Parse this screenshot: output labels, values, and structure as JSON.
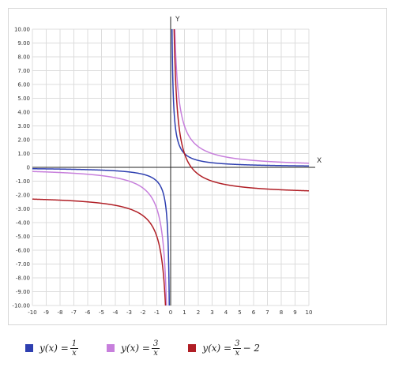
{
  "chart_data": {
    "type": "line",
    "xlabel": "X",
    "ylabel": "Y",
    "xlim": [
      -10,
      10
    ],
    "ylim": [
      -10,
      10
    ],
    "grid": true,
    "x_ticks": [
      "-10",
      "-9",
      "-8",
      "-7",
      "-6",
      "-5",
      "-4",
      "-3",
      "-2",
      "-1",
      "0",
      "1",
      "2",
      "3",
      "4",
      "5",
      "6",
      "7",
      "8",
      "9",
      "10"
    ],
    "y_ticks": [
      "10.00",
      "9.00",
      "8.00",
      "7.00",
      "6.00",
      "5.00",
      "4.00",
      "3.00",
      "2.00",
      "1.00",
      "0",
      "-1.00",
      "-2.00",
      "-3.00",
      "-4.00",
      "-5.00",
      "-6.00",
      "-7.00",
      "-8.00",
      "-9.00",
      "-10.00"
    ],
    "series": [
      {
        "name": "y(x) = 1/x",
        "color": "#2e3fb0",
        "a": 1,
        "b": 0,
        "legend": {
          "lhs": "y(x) =",
          "num": "1",
          "den": "x",
          "rest": ""
        }
      },
      {
        "name": "y(x) = 3/x",
        "color": "#c77fdc",
        "a": 3,
        "b": 0,
        "legend": {
          "lhs": "y(x) =",
          "num": "3",
          "den": "x",
          "rest": ""
        }
      },
      {
        "name": "y(x) = 3/x − 2",
        "color": "#b01e25",
        "a": 3,
        "b": -2,
        "legend": {
          "lhs": "y(x) =",
          "num": "3",
          "den": "x",
          "rest": "− 2"
        }
      }
    ]
  }
}
